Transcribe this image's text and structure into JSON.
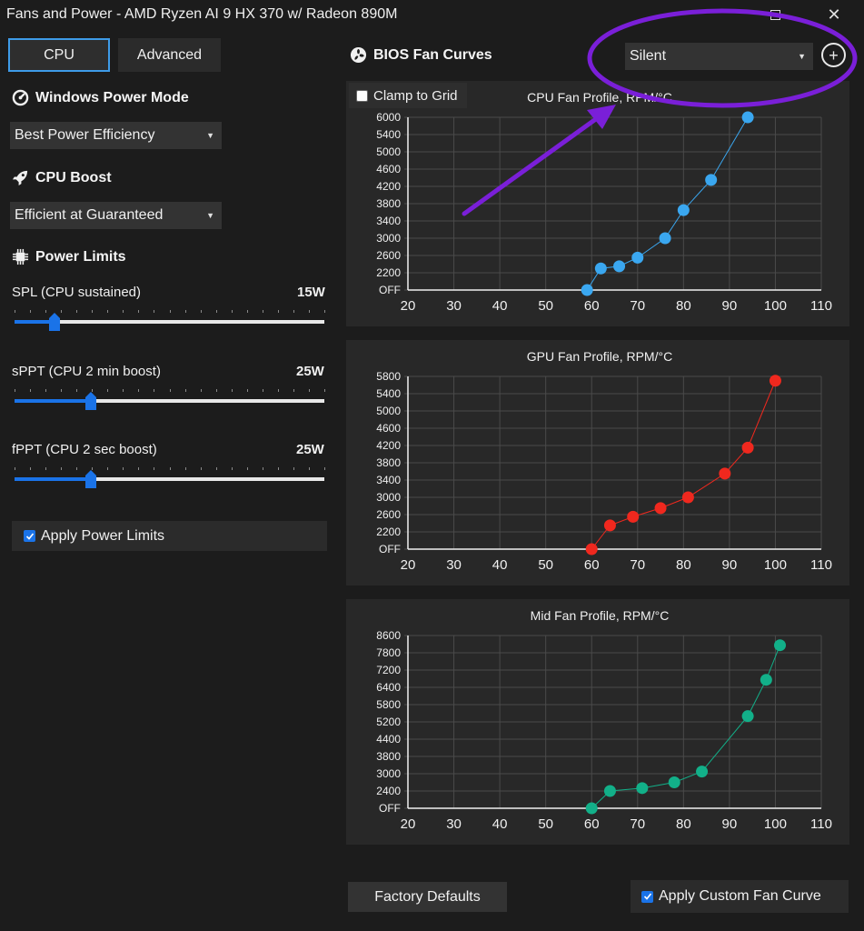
{
  "window": {
    "title": "Fans and Power - AMD Ryzen AI 9 HX 370 w/ Radeon 890M",
    "maximize_icon": "maximize-icon",
    "close_icon": "close-icon",
    "close_glyph": "✕"
  },
  "tabs": [
    {
      "label": "CPU",
      "active": true
    },
    {
      "label": "Advanced",
      "active": false
    }
  ],
  "power_mode": {
    "heading": "Windows Power Mode",
    "icon": "gauge-icon",
    "value": "Best Power Efficiency"
  },
  "cpu_boost": {
    "heading": "CPU Boost",
    "icon": "rocket-icon",
    "value": "Efficient at Guaranteed"
  },
  "power_limits": {
    "heading": "Power Limits",
    "icon": "chip-icon",
    "sliders": [
      {
        "label": "SPL (CPU sustained)",
        "value": "15W",
        "position": 0.13
      },
      {
        "label": "sPPT (CPU 2 min boost)",
        "value": "25W",
        "position": 0.245
      },
      {
        "label": "fPPT (CPU 2 sec boost)",
        "value": "25W",
        "position": 0.245
      }
    ],
    "apply_label": "Apply Power Limits",
    "apply_checked": true
  },
  "fan_curves": {
    "heading": "BIOS Fan Curves",
    "icon": "fan-icon",
    "preset": "Silent",
    "add_icon": "plus-circle-icon",
    "clamp_label": "Clamp to Grid",
    "clamp_checked": false
  },
  "chart_data": [
    {
      "type": "line",
      "title": "CPU Fan Profile, RPM/°C",
      "color": "#3aa7f0",
      "x_ticks": [
        "20",
        "30",
        "40",
        "50",
        "60",
        "70",
        "80",
        "90",
        "100",
        "110"
      ],
      "y_ticks": [
        "OFF",
        "2200",
        "2600",
        "3000",
        "3400",
        "3800",
        "4200",
        "4600",
        "5000",
        "5400",
        "6000"
      ],
      "xlim": [
        20,
        110
      ],
      "x": [
        59,
        62,
        66,
        70,
        76,
        80,
        86,
        94
      ],
      "y": [
        "OFF",
        2300,
        2350,
        2550,
        3000,
        3650,
        4350,
        6000
      ]
    },
    {
      "type": "line",
      "title": "GPU Fan Profile, RPM/°C",
      "color": "#f0281e",
      "x_ticks": [
        "20",
        "30",
        "40",
        "50",
        "60",
        "70",
        "80",
        "90",
        "100",
        "110"
      ],
      "y_ticks": [
        "OFF",
        "2200",
        "2600",
        "3000",
        "3400",
        "3800",
        "4200",
        "4600",
        "5000",
        "5400",
        "5800"
      ],
      "xlim": [
        20,
        110
      ],
      "x": [
        60,
        64,
        69,
        75,
        81,
        89,
        94,
        100
      ],
      "y": [
        "OFF",
        2350,
        2550,
        2750,
        3000,
        3550,
        4150,
        5700
      ]
    },
    {
      "type": "line",
      "title": "Mid Fan Profile, RPM/°C",
      "color": "#12b089",
      "x_ticks": [
        "20",
        "30",
        "40",
        "50",
        "60",
        "70",
        "80",
        "90",
        "100",
        "110"
      ],
      "y_ticks": [
        "OFF",
        "2400",
        "3000",
        "3800",
        "4400",
        "5200",
        "5800",
        "6400",
        "7200",
        "7800",
        "8600"
      ],
      "xlim": [
        20,
        110
      ],
      "x": [
        60,
        64,
        71,
        78,
        84,
        94,
        98,
        101
      ],
      "y": [
        "OFF",
        2400,
        2500,
        2700,
        3100,
        5400,
        6750,
        8150
      ]
    }
  ],
  "buttons": {
    "factory_defaults": "Factory Defaults",
    "apply_custom_label": "Apply Custom Fan Curve",
    "apply_custom_checked": true
  },
  "annotation": {
    "color": "#7a1fd8"
  }
}
